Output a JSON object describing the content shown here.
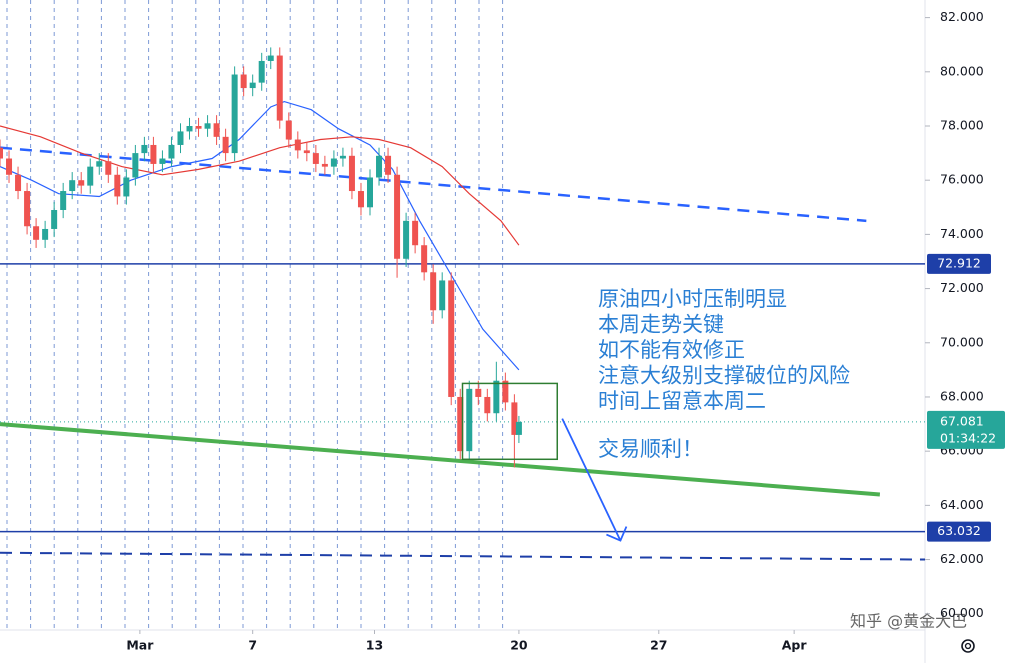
{
  "chart_data": {
    "type": "candlestick",
    "xlim": [
      0,
      205
    ],
    "ylim": [
      59.4,
      82.65
    ],
    "xticks": [
      {
        "value": 31,
        "label": "Mar"
      },
      {
        "value": 56,
        "label": "7"
      },
      {
        "value": 83,
        "label": "13"
      },
      {
        "value": 115,
        "label": "20"
      },
      {
        "value": 146,
        "label": "27"
      },
      {
        "value": 176,
        "label": "Apr"
      }
    ],
    "yticks": [
      {
        "value": 60,
        "label": "60.000"
      },
      {
        "value": 62,
        "label": "62.000"
      },
      {
        "value": 64,
        "label": "64.000"
      },
      {
        "value": 66,
        "label": "66.000"
      },
      {
        "value": 68,
        "label": "68.000"
      },
      {
        "value": 70,
        "label": "70.000"
      },
      {
        "value": 72,
        "label": "72.000"
      },
      {
        "value": 74,
        "label": "74.000"
      },
      {
        "value": 76,
        "label": "76.000"
      },
      {
        "value": 78,
        "label": "78.000"
      },
      {
        "value": 80,
        "label": "80.000"
      },
      {
        "value": 82,
        "label": "82.000"
      }
    ],
    "up_color": "#26a69a",
    "down_color": "#ef5350",
    "x": [
      0,
      2,
      4,
      6,
      8,
      10,
      12,
      14,
      16,
      18,
      20,
      22,
      24,
      26,
      28,
      30,
      32,
      34,
      36,
      38,
      40,
      42,
      44,
      46,
      48,
      50,
      52,
      54,
      56,
      58,
      60,
      62,
      64,
      66,
      68,
      70,
      72,
      74,
      76,
      78,
      80,
      82,
      84,
      86,
      88,
      90,
      92,
      94,
      96,
      98,
      100,
      102,
      104,
      106,
      108,
      110,
      112,
      114,
      115
    ],
    "open": [
      77.2,
      76.8,
      76.2,
      75.6,
      74.3,
      73.8,
      74.2,
      74.9,
      75.6,
      76.0,
      75.8,
      76.5,
      76.7,
      76.2,
      75.4,
      76.1,
      77.0,
      77.3,
      76.6,
      76.8,
      77.3,
      77.8,
      78.0,
      77.9,
      78.1,
      77.6,
      77.0,
      79.9,
      79.4,
      79.6,
      80.4,
      80.6,
      78.2,
      77.5,
      77.1,
      77.0,
      76.6,
      76.5,
      76.8,
      76.9,
      75.6,
      75.0,
      76.1,
      76.9,
      76.2,
      73.1,
      74.5,
      73.6,
      72.6,
      71.2,
      72.3,
      68.0,
      66.0,
      68.3,
      68.0,
      67.4,
      68.6,
      67.8,
      66.6
    ],
    "high": [
      77.5,
      77.1,
      76.5,
      75.9,
      74.6,
      74.5,
      75.2,
      75.9,
      76.3,
      76.3,
      76.8,
      77.0,
      77.0,
      76.5,
      76.4,
      77.3,
      77.6,
      77.6,
      77.1,
      77.6,
      78.1,
      78.3,
      78.3,
      78.4,
      78.4,
      77.9,
      80.2,
      80.2,
      79.9,
      80.7,
      80.9,
      80.9,
      78.5,
      77.8,
      77.4,
      77.3,
      76.9,
      77.1,
      77.2,
      77.2,
      75.9,
      76.4,
      77.2,
      77.2,
      76.5,
      74.8,
      74.8,
      73.9,
      72.9,
      72.6,
      72.6,
      68.3,
      68.6,
      68.6,
      68.3,
      69.3,
      68.9,
      68.1,
      67.3
    ],
    "low": [
      76.5,
      75.9,
      75.3,
      74.0,
      73.5,
      73.5,
      73.9,
      74.6,
      75.3,
      75.5,
      75.5,
      76.2,
      75.9,
      75.1,
      75.1,
      75.8,
      76.7,
      76.3,
      76.3,
      76.5,
      77.0,
      77.5,
      77.6,
      77.6,
      77.3,
      76.7,
      76.7,
      79.1,
      79.1,
      79.3,
      80.1,
      77.9,
      77.2,
      76.8,
      76.7,
      76.3,
      76.2,
      76.2,
      76.5,
      75.3,
      74.7,
      74.7,
      75.8,
      75.9,
      72.4,
      72.8,
      73.3,
      72.3,
      70.7,
      70.9,
      67.7,
      65.7,
      65.7,
      67.7,
      67.1,
      67.1,
      67.5,
      65.4,
      66.3
    ],
    "close": [
      76.8,
      76.2,
      75.6,
      74.3,
      73.8,
      74.2,
      74.9,
      75.6,
      76.0,
      75.8,
      76.5,
      76.7,
      76.2,
      75.4,
      76.1,
      77.0,
      77.3,
      76.6,
      76.8,
      77.3,
      77.8,
      78.0,
      77.9,
      78.1,
      77.6,
      77.0,
      79.9,
      79.4,
      79.6,
      80.4,
      80.6,
      78.2,
      77.5,
      77.1,
      77.0,
      76.6,
      76.5,
      76.8,
      76.9,
      75.6,
      75.0,
      76.1,
      76.9,
      76.2,
      73.1,
      74.5,
      73.6,
      72.6,
      71.2,
      72.3,
      68.0,
      66.0,
      68.3,
      68.0,
      67.4,
      68.6,
      67.8,
      66.6,
      67.081
    ],
    "countdown": "01:34:22",
    "lines": [
      {
        "color": "#2962ff",
        "x": [
          0,
          7,
          13,
          22,
          29,
          38,
          47,
          53,
          60,
          63,
          69,
          75,
          82,
          87,
          93,
          100,
          107,
          115
        ],
        "values": [
          76.5,
          76.0,
          75.5,
          75.4,
          76.0,
          76.5,
          76.8,
          77.5,
          78.7,
          78.9,
          78.6,
          77.9,
          77.3,
          76.4,
          74.5,
          72.5,
          70.5,
          69.0
        ]
      },
      {
        "color": "#e53935",
        "x": [
          0,
          9,
          18,
          27,
          36,
          44,
          53,
          62,
          71,
          78,
          84,
          91,
          98,
          104,
          111,
          115
        ],
        "values": [
          78.0,
          77.6,
          77.0,
          76.5,
          76.2,
          76.4,
          76.7,
          77.2,
          77.5,
          77.6,
          77.5,
          77.2,
          76.5,
          75.5,
          74.5,
          73.6
        ]
      }
    ],
    "horizontal_lines": [
      {
        "value": 72.912,
        "color": "#1e3fa8"
      },
      {
        "value": 63.032,
        "color": "#1e3fa8"
      }
    ],
    "trend_lines": [
      {
        "x": [
          0,
          192
        ],
        "y": [
          77.2,
          74.5
        ],
        "color": "#2962ff",
        "dashed": true,
        "width": 2.5
      },
      {
        "x": [
          0,
          195
        ],
        "y": [
          67.0,
          64.4
        ],
        "color": "#4caf50",
        "dashed": false,
        "width": 4
      },
      {
        "x": [
          0,
          205
        ],
        "y": [
          62.25,
          62.0
        ],
        "color": "#1e3fa8",
        "dashed": true,
        "width": 2
      }
    ],
    "rectangle": {
      "x": [
        102.5,
        123.5
      ],
      "y": [
        68.5,
        65.7
      ],
      "color": "#2e7d32"
    },
    "arrow": {
      "x": [
        124.6,
        137.5
      ],
      "y": [
        67.2,
        62.7
      ],
      "color": "#2962ff"
    },
    "annotation_lines": [
      "原油四小时压制明显",
      "本周走势关键",
      "如不能有效修正",
      "注意大级别支撑破位的风险",
      "时间上留意本周二"
    ],
    "annotation_footer": "交易顺利！",
    "watermark": "知乎 @黄金大巴"
  }
}
